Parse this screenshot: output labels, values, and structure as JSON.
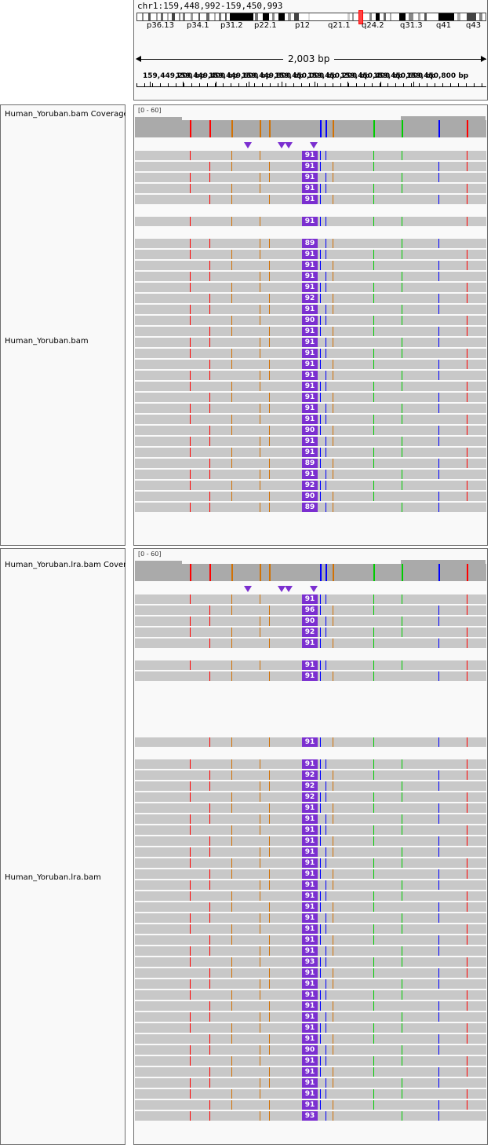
{
  "header": {
    "locus": "chr1:159,448,992-159,450,993",
    "bands": [
      "p36.13",
      "p34.1",
      "p31.2",
      "p22.1",
      "p12",
      "q21.1",
      "q24.2",
      "q31.3",
      "q41",
      "q43"
    ],
    "span": "2,003 bp",
    "ticks": [
      "159,449,200 bp",
      "159,449,400 bp",
      "159,449,600 bp",
      "159,449,800 bp",
      "159,450,000 bp",
      "159,450,200 bp",
      "159,450,400 bp",
      "159,450,600 bp",
      "159,450,800 bp"
    ]
  },
  "tracks": [
    {
      "coverage_name": "Human_Yoruban.bam Coverage",
      "coverage_range": "[0 - 60]",
      "alignment_name": "Human_Yoruban.bam",
      "insertion_counts": [
        "91",
        "91",
        "91",
        "91",
        "91",
        "",
        "91",
        "",
        "89",
        "91",
        "91",
        "91",
        "91",
        "92",
        "91",
        "90",
        "91",
        "91",
        "91",
        "91",
        "91",
        "91",
        "91",
        "91",
        "91",
        "90",
        "91",
        "91",
        "89",
        "91",
        "92",
        "90",
        "89"
      ]
    },
    {
      "coverage_name": "Human_Yoruban.lra.bam Coverage",
      "coverage_range": "[0 - 60]",
      "alignment_name": "Human_Yoruban.lra.bam",
      "insertion_counts": [
        "91",
        "96",
        "90",
        "92",
        "91",
        "",
        "91",
        "91",
        "",
        "",
        "",
        "",
        "",
        "91",
        "",
        "91",
        "92",
        "92",
        "92",
        "91",
        "91",
        "91",
        "91",
        "91",
        "91",
        "91",
        "91",
        "91",
        "91",
        "91",
        "91",
        "91",
        "91",
        "93",
        "91",
        "91",
        "91",
        "91",
        "91",
        "91",
        "91",
        "90",
        "91",
        "91",
        "91",
        "91",
        "91",
        "93"
      ]
    }
  ],
  "colors": {
    "read": "#c8c8c8",
    "insertion": "#7b2fd0",
    "coverage": "#aaaaaa",
    "mismatch_a": "#00cc00",
    "mismatch_c": "#0000ff",
    "mismatch_g": "#d17105",
    "mismatch_t": "#ff0000"
  }
}
